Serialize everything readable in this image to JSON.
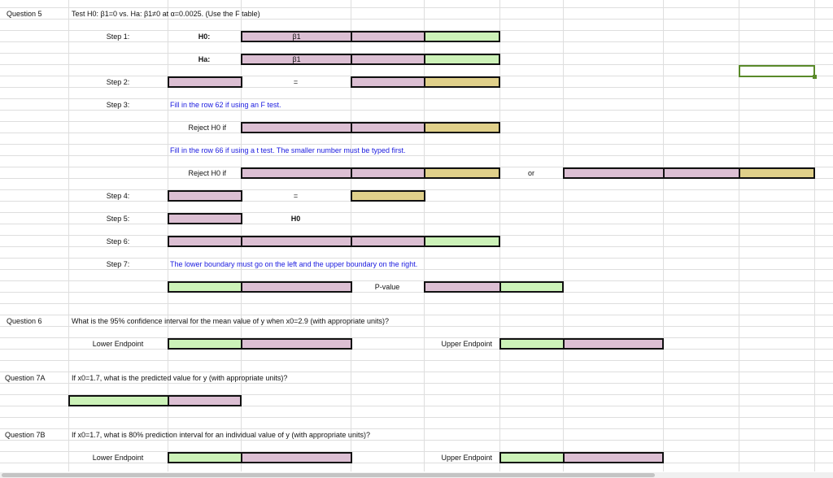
{
  "colors": {
    "input_pink": "#dcbfd3",
    "input_green": "#ccf2b8",
    "input_tan": "#e0d08a",
    "instruction_blue": "#1a1adf",
    "selection": "#5a8a2a"
  },
  "q5": {
    "label": "Question 5",
    "prompt": "Test H0: β1=0 vs. Ha: β1≠0 at α=0.0025.  (Use the F table)",
    "step1": "Step 1:",
    "h0": "H0:",
    "ha": "Ha:",
    "beta": "β1",
    "step2": "Step 2:",
    "equals": "=",
    "step3": "Step 3:",
    "note_f": "Fill in the row 62 if using an F test.",
    "reject": "Reject H0 if",
    "note_t": "Fill in the row 66 if using a t test.  The smaller number must be typed first.",
    "or": "or",
    "step4": "Step 4:",
    "step5": "Step 5:",
    "h0_plain": "H0",
    "step6": "Step 6:",
    "step7": "Step 7:",
    "note_bounds": "The lower boundary must go on the left and the upper boundary on the right.",
    "pvalue": "P-value"
  },
  "q6": {
    "label": "Question 6",
    "prompt": "What is the 95% confidence interval for the mean value of y when x0=2.9 (with appropriate units)?",
    "lower": "Lower Endpoint",
    "upper": "Upper Endpoint"
  },
  "q7a": {
    "label": "Question 7A",
    "prompt": "If x0=1.7, what is the predicted value for y (with appropriate units)?"
  },
  "q7b": {
    "label": "Question 7B",
    "prompt": "If x0=1.7, what is 80% prediction interval for an individual value of y (with appropriate units)?",
    "lower": "Lower Endpoint",
    "upper": "Upper Endpoint"
  }
}
